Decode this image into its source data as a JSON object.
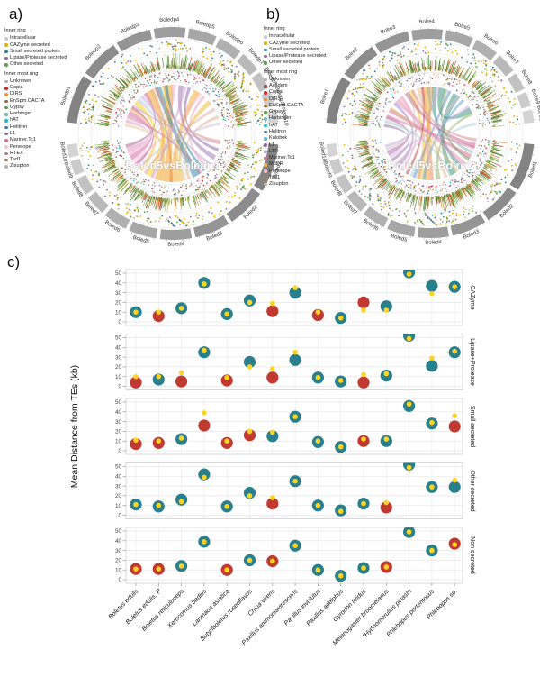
{
  "panels": {
    "a": {
      "label": "a)",
      "title": "Boled5vsBoledp1",
      "legend1_title": "Inner ring",
      "legend1": [
        {
          "label": "Intracellular",
          "color": "#c9c9c9"
        },
        {
          "label": "CAZyme secreted",
          "color": "#e2b007"
        },
        {
          "label": "Small secreted protein",
          "color": "#2b7f8e"
        },
        {
          "label": "Lipase/Protease secreted",
          "color": "#8d6cab"
        },
        {
          "label": "Other secreted",
          "color": "#59a14f"
        }
      ],
      "legend2_title": "Inner most ring",
      "legend2": [
        {
          "label": "Unknown",
          "color": "#b0b0b0"
        },
        {
          "label": "Copia",
          "color": "#d62728"
        },
        {
          "label": "DIRS",
          "color": "#f28e2b"
        },
        {
          "label": "EnSpm.CACTA",
          "color": "#9c6b30"
        },
        {
          "label": "Gypsy",
          "color": "#59a14f"
        },
        {
          "label": "Harbinger",
          "color": "#76b7b2"
        },
        {
          "label": "hAT",
          "color": "#17becf"
        },
        {
          "label": "Helitron",
          "color": "#4e79a7"
        },
        {
          "label": "L1",
          "color": "#8d6cab"
        },
        {
          "label": "Mariner.Tc1",
          "color": "#d37295"
        },
        {
          "label": "Penelope",
          "color": "#fabfd2"
        },
        {
          "label": "RTEX",
          "color": "#b07aa1"
        },
        {
          "label": "Tad1",
          "color": "#9d7660"
        },
        {
          "label": "Zisupton",
          "color": "#bab0ac"
        }
      ],
      "top_segments": [
        "Boledp1",
        "Boledp2",
        "Boledp3",
        "Boledp4",
        "Boledp5",
        "Boledp6",
        "Boledp7",
        "Boledp8",
        "Boledp9",
        "Boledp10"
      ],
      "bottom_segments": [
        "Boled1",
        "Boled2",
        "Boled3",
        "Boled4",
        "Boled5",
        "Boled6",
        "Boled7",
        "Boled8",
        "Boled9",
        "Boled10"
      ],
      "links": [
        [
          262,
          6,
          95,
          5,
          "#f2991d"
        ],
        [
          272,
          5,
          60,
          4,
          "#f5a623"
        ],
        [
          252,
          4,
          120,
          4,
          "#f2991d"
        ],
        [
          280,
          3,
          40,
          3,
          "#e8b631"
        ],
        [
          240,
          4,
          100,
          3,
          "#f6d019"
        ],
        [
          228,
          3,
          140,
          3,
          "#f6d019"
        ],
        [
          300,
          5,
          108,
          4,
          "#2e7f9e"
        ],
        [
          310,
          2,
          98,
          2,
          "#2e7f9e"
        ],
        [
          210,
          3,
          155,
          3,
          "#d560a2"
        ],
        [
          200,
          3,
          165,
          2,
          "#e38fc0"
        ],
        [
          195,
          2,
          125,
          2,
          "#c75e9f"
        ],
        [
          220,
          2,
          148,
          2,
          "#b93d8e"
        ],
        [
          330,
          3,
          80,
          3,
          "#9b6fb0"
        ],
        [
          340,
          2,
          70,
          2,
          "#8a5fa8"
        ],
        [
          320,
          2,
          130,
          2,
          "#caa9d8"
        ],
        [
          290,
          2,
          20,
          2,
          "#d9b38c"
        ],
        [
          285,
          2,
          170,
          2,
          "#e2c59e"
        ],
        [
          235,
          2,
          30,
          2,
          "#e0a8a8"
        ],
        [
          350,
          2,
          110,
          2,
          "#d98a8a"
        ],
        [
          215,
          2,
          55,
          2,
          "#f0b8cf"
        ],
        [
          205,
          2,
          88,
          2,
          "#eaa6c5"
        ],
        [
          255,
          2,
          150,
          2,
          "#f2cf65"
        ],
        [
          268,
          2,
          115,
          2,
          "#e7903c"
        ],
        [
          245,
          2,
          75,
          2,
          "#cfa0cf"
        ],
        [
          225,
          2,
          12,
          2,
          "#d3c0e8"
        ],
        [
          296,
          2,
          135,
          2,
          "#a8c6d8"
        ],
        [
          305,
          2,
          160,
          2,
          "#c9809a"
        ],
        [
          348,
          1.5,
          145,
          1.5,
          "#c8a2c8"
        ],
        [
          315,
          2,
          50,
          2,
          "#e59fb4"
        ],
        [
          195,
          1.5,
          100,
          1.5,
          "#b8b8b8"
        ]
      ]
    },
    "b": {
      "label": "b)",
      "title": "Boled5vsBolre1",
      "legend1_title": "Inner ring",
      "legend1": [
        {
          "label": "Intracellular",
          "color": "#c9c9c9"
        },
        {
          "label": "CAZyme secreted",
          "color": "#e2b007"
        },
        {
          "label": "Small secreted protein",
          "color": "#2b7f8e"
        },
        {
          "label": "Lipase/Protease secreted",
          "color": "#8d6cab"
        },
        {
          "label": "Other secreted",
          "color": "#59a14f"
        }
      ],
      "legend2_title": "Inner most ring",
      "legend2": [
        {
          "label": "Unknown",
          "color": "#b0b0b0"
        },
        {
          "label": "Academ",
          "color": "#8c564b"
        },
        {
          "label": "Copia",
          "color": "#d62728"
        },
        {
          "label": "DIRS",
          "color": "#f28e2b"
        },
        {
          "label": "EnSpm.CACTA",
          "color": "#9c6b30"
        },
        {
          "label": "Gypsy",
          "color": "#59a14f"
        },
        {
          "label": "Harbinger",
          "color": "#76b7b2"
        },
        {
          "label": "hAT",
          "color": "#17becf"
        },
        {
          "label": "Helitron",
          "color": "#4e79a7"
        },
        {
          "label": "Kolobok",
          "color": "#6baed6"
        },
        {
          "label": "L1",
          "color": "#8d6cab"
        },
        {
          "label": "LTR",
          "color": "#c5b0d5"
        },
        {
          "label": "Mariner.Tc1",
          "color": "#d37295"
        },
        {
          "label": "MuDR",
          "color": "#e7ba52"
        },
        {
          "label": "Penelope",
          "color": "#fabfd2"
        },
        {
          "label": "Tad1",
          "color": "#9d7660"
        },
        {
          "label": "Zisupton",
          "color": "#bab0ac"
        }
      ],
      "top_segments": [
        "Bolre1",
        "Bolre2",
        "Bolre3",
        "Bolre4",
        "Bolre5",
        "Bolre6",
        "Bolre7",
        "Bolre8",
        "Bolre9",
        "Bolre10"
      ],
      "bottom_segments": [
        "Boled1",
        "Boled2",
        "Boled3",
        "Boled4",
        "Boled5",
        "Boled6",
        "Boled7",
        "Boled8",
        "Boled9",
        "Boled10"
      ],
      "links": [
        [
          268,
          6,
          95,
          5,
          "#f0a125"
        ],
        [
          258,
          4,
          115,
          3,
          "#f6c948"
        ],
        [
          300,
          4,
          55,
          5,
          "#2f8f7a"
        ],
        [
          30,
          4,
          75,
          4,
          "#2f8f7a"
        ],
        [
          312,
          3,
          85,
          3,
          "#3a9188"
        ],
        [
          330,
          3,
          150,
          3,
          "#d46a96"
        ],
        [
          318,
          3,
          135,
          3,
          "#e08bb0"
        ],
        [
          345,
          3,
          120,
          3,
          "#cc5f8e"
        ],
        [
          205,
          3,
          160,
          2,
          "#b05fa0"
        ],
        [
          215,
          2,
          170,
          2,
          "#8f6bae"
        ],
        [
          225,
          3,
          140,
          2,
          "#9d7bbd"
        ],
        [
          240,
          2,
          100,
          2,
          "#c24040"
        ],
        [
          250,
          2,
          65,
          2,
          "#5b8fc9"
        ],
        [
          262,
          2,
          45,
          2,
          "#6a9fd8"
        ],
        [
          280,
          3,
          25,
          2,
          "#8fae6a"
        ],
        [
          290,
          2,
          105,
          2,
          "#e3b587"
        ],
        [
          232,
          2,
          128,
          2,
          "#e8a7c3"
        ],
        [
          196,
          2,
          80,
          2,
          "#caa3d6"
        ],
        [
          352,
          2,
          112,
          2,
          "#d98888"
        ],
        [
          336,
          2,
          92,
          2,
          "#87b5ae"
        ],
        [
          305,
          2,
          148,
          2,
          "#e0c070"
        ],
        [
          246,
          2,
          12,
          2,
          "#b8cbe0"
        ],
        [
          272,
          3,
          130,
          3,
          "#efb3c8"
        ],
        [
          326,
          2,
          70,
          2,
          "#7a9e5f"
        ],
        [
          210,
          2,
          35,
          2,
          "#d6b3e0"
        ],
        [
          200,
          1.5,
          120,
          1.5,
          "#c0c0c0"
        ],
        [
          255,
          2,
          88,
          2,
          "#e89b5f"
        ],
        [
          342,
          2,
          158,
          2,
          "#d37aa6"
        ],
        [
          296,
          2,
          165,
          2,
          "#a6c8c0"
        ],
        [
          222,
          2,
          52,
          2,
          "#e6c2d6"
        ]
      ]
    },
    "c": {
      "label": "c)"
    }
  },
  "density_colors": [
    "#4a7c2f",
    "#76a23f",
    "#a3c05a",
    "#c23b22",
    "#e07b39",
    "#caa83e",
    "#8fa6a0"
  ],
  "chart_data": {
    "type": "scatter",
    "ylabel": "Mean Distance from TEs (kb)",
    "ylim": [
      0,
      50
    ],
    "yticks": [
      0,
      10,
      20,
      30,
      40,
      50
    ],
    "grid": true,
    "legend_position": "none",
    "point_colors": {
      "t": "#2a7f8d",
      "r": "#c03a31",
      "genome_mean": "#ffd31e"
    },
    "color_key": {
      "t": "category genes (teal)",
      "r": "category genes (red)",
      "yellow": "genome-wide mean"
    },
    "species": [
      "Boletus edulis",
      "Boletus edulis. P",
      "Boletus reticuloceps",
      "Xerocomus badius",
      "Lanmaoa asiatica",
      "Butyriboletus roseoflavus",
      "Chiua virens",
      "Paxillus ammoniavirescens",
      "Paxillus involutus",
      "Paxillus adelphus",
      "Gyrodon lividus",
      "Melanogaster broomeianus",
      "*Hydnomerulius pinastri",
      "Phlebopus portentosus",
      "Phlebopus sp."
    ],
    "facets": [
      {
        "label": "CAZyme",
        "values": [
          10,
          6,
          14,
          40,
          8,
          22,
          11,
          30,
          7,
          4,
          20,
          16,
          51,
          37,
          36
        ],
        "colors": "trttttrtrtrtttt",
        "genome_mean": [
          10,
          10,
          14,
          39,
          8,
          20,
          19,
          35,
          10,
          4,
          12,
          12,
          49,
          29,
          36
        ]
      },
      {
        "label": "Lipase+Protease",
        "values": [
          4,
          7,
          5,
          35,
          6,
          25,
          9,
          27,
          9,
          5,
          4,
          11,
          52,
          21,
          35
        ],
        "colors": "rtrtrtrtttrtttt",
        "genome_mean": [
          10,
          10,
          14,
          37,
          9,
          20,
          18,
          35,
          9,
          6,
          12,
          13,
          49,
          29,
          36
        ]
      },
      {
        "label": "Small secreted",
        "values": [
          7,
          8,
          12,
          26,
          8,
          16,
          15,
          35,
          9,
          4,
          10,
          10,
          46,
          28,
          25
        ],
        "colors": "rrtrrrttttrtttr",
        "genome_mean": [
          11,
          10,
          13,
          39,
          10,
          20,
          19,
          35,
          10,
          4,
          12,
          12,
          48,
          29,
          36
        ]
      },
      {
        "label": "Other secreted",
        "values": [
          11,
          9,
          16,
          42,
          9,
          23,
          12,
          35,
          10,
          5,
          12,
          8,
          52,
          29,
          29
        ],
        "colors": "ttttttrttttrttt",
        "genome_mean": [
          11,
          10,
          14,
          39,
          9,
          20,
          18,
          35,
          10,
          4,
          12,
          13,
          49,
          29,
          36
        ]
      },
      {
        "label": "Non secreted",
        "values": [
          11,
          11,
          14,
          39,
          10,
          20,
          19,
          35,
          10,
          4,
          12,
          13,
          49,
          30,
          37
        ],
        "colors": "rrttrtrttttrttr",
        "genome_mean": [
          11,
          11,
          14,
          39,
          10,
          20,
          19,
          35,
          10,
          4,
          12,
          13,
          49,
          30,
          36
        ]
      }
    ]
  }
}
